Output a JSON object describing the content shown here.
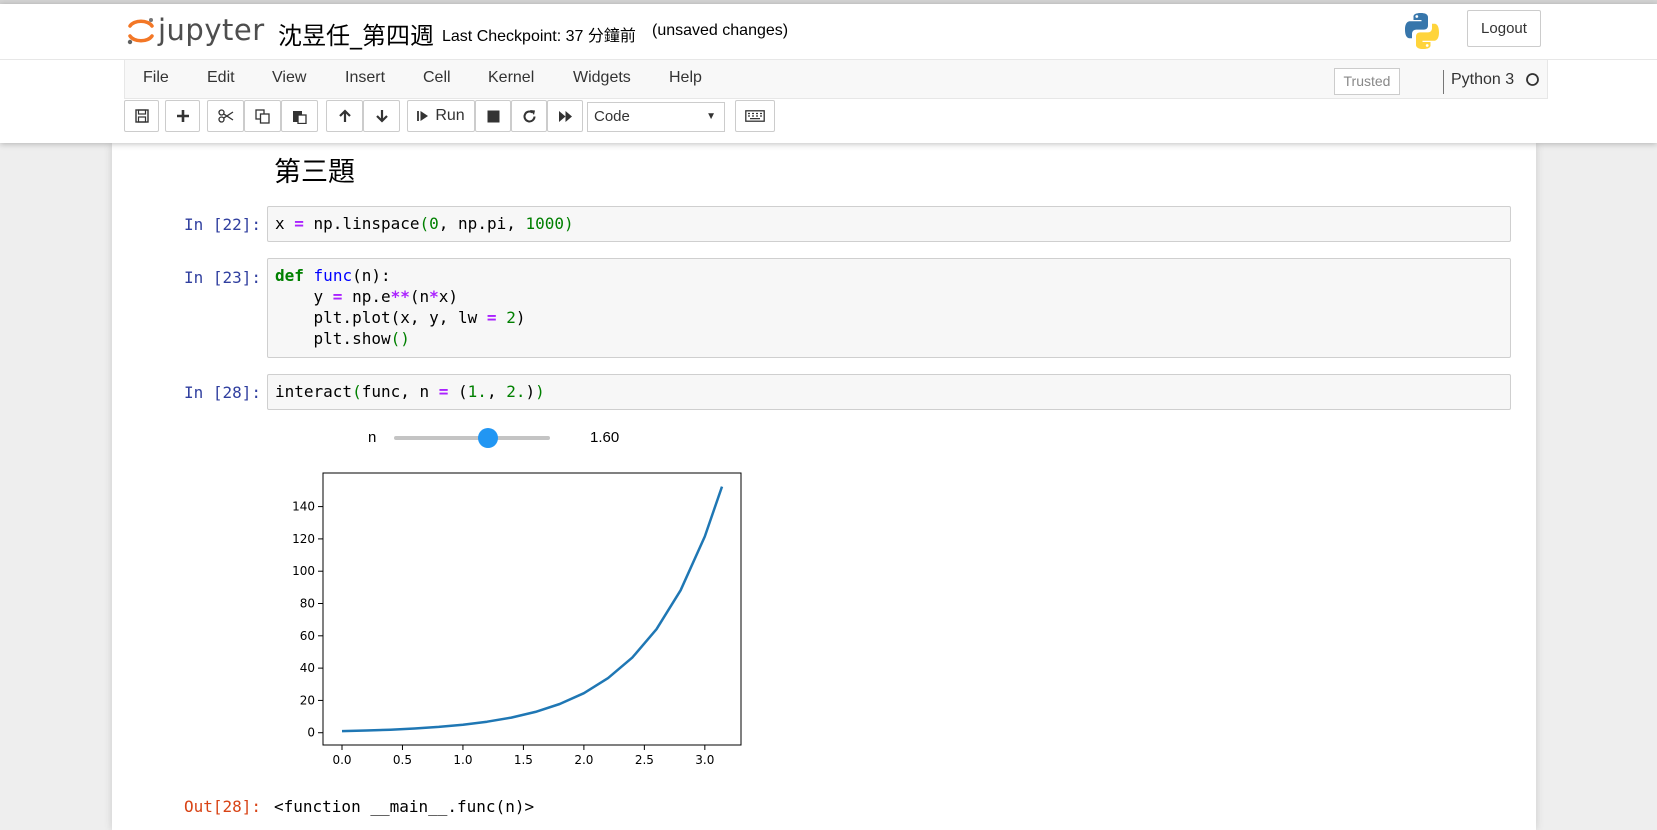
{
  "header": {
    "logo_text": "jupyter",
    "notebook_title": "沈昱任_第四週",
    "checkpoint": "Last Checkpoint: 37 分鐘前",
    "unsaved": "(unsaved changes)",
    "logout_label": "Logout"
  },
  "menu": {
    "items": [
      "File",
      "Edit",
      "View",
      "Insert",
      "Cell",
      "Kernel",
      "Widgets",
      "Help"
    ],
    "trusted": "Trusted",
    "kernel_name": "Python 3"
  },
  "toolbar": {
    "run_label": "Run",
    "cell_type": "Code"
  },
  "notebook": {
    "heading": "第三題",
    "cells": [
      {
        "prompt": "In [22]:",
        "code": "x = np.linspace(0, np.pi, 1000)"
      },
      {
        "prompt": "In [23]:",
        "code": "def func(n):\n    y = np.e**(n*x)\n    plt.plot(x, y, lw = 2)\n    plt.show()"
      },
      {
        "prompt": "In [28]:",
        "code": "interact(func, n = (1., 2.))"
      }
    ],
    "widget": {
      "label": "n",
      "value": "1.60",
      "min": 1.0,
      "max": 2.0,
      "current": 1.6
    },
    "output": {
      "prompt": "Out[28]:",
      "text": "<function __main__.func(n)>"
    }
  },
  "chart_data": {
    "type": "line",
    "title": "",
    "xlabel": "",
    "ylabel": "",
    "xlim": [
      -0.157,
      3.299
    ],
    "ylim": [
      -7.6,
      160.8
    ],
    "xticks": [
      0.0,
      0.5,
      1.0,
      1.5,
      2.0,
      2.5,
      3.0
    ],
    "xtick_labels": [
      "0.0",
      "0.5",
      "1.0",
      "1.5",
      "2.0",
      "2.5",
      "3.0"
    ],
    "yticks": [
      0,
      20,
      40,
      60,
      80,
      100,
      120,
      140
    ],
    "ytick_labels": [
      "0",
      "20",
      "40",
      "60",
      "80",
      "100",
      "120",
      "140"
    ],
    "series": [
      {
        "color": "#1f77b4",
        "x": [
          0.0,
          0.2,
          0.4,
          0.6,
          0.8,
          1.0,
          1.2,
          1.4,
          1.6,
          1.8,
          2.0,
          2.2,
          2.4,
          2.6,
          2.8,
          3.0,
          3.1416
        ],
        "y": [
          1.0,
          1.38,
          1.9,
          2.61,
          3.6,
          4.95,
          6.82,
          9.39,
          12.9,
          17.8,
          24.5,
          33.8,
          46.5,
          64.1,
          88.2,
          121.5,
          152.4
        ]
      }
    ],
    "grid": false,
    "legend": "none"
  }
}
